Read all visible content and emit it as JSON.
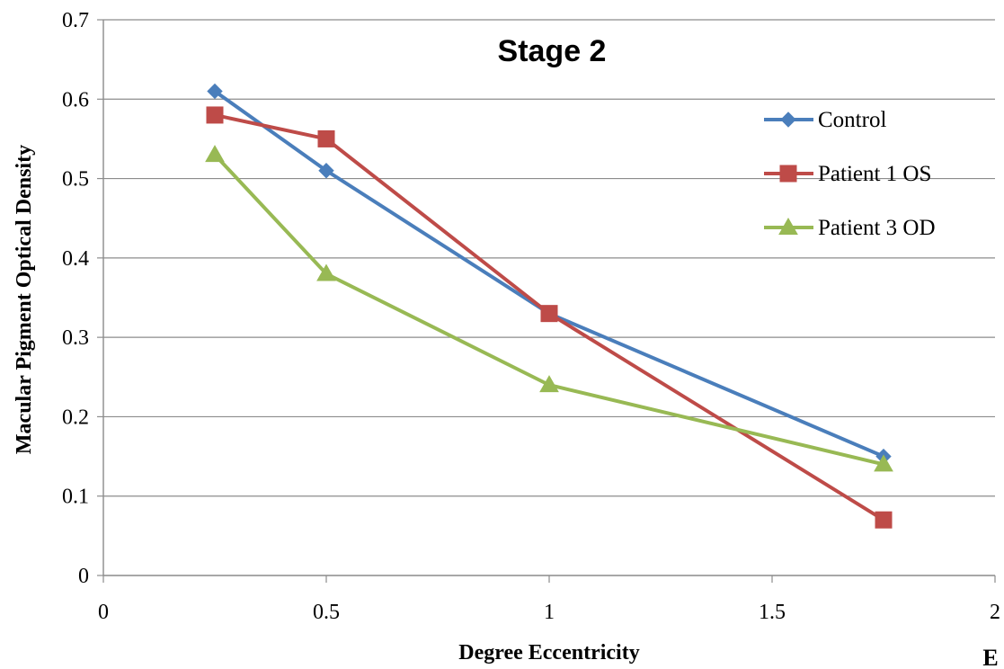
{
  "chart_data": {
    "type": "line",
    "title": "Stage 2",
    "xlabel": "Degree Eccentricity",
    "ylabel": "Macular Pigment Optical Density",
    "xlim": [
      0,
      2
    ],
    "ylim": [
      0,
      0.7
    ],
    "xticks": [
      "0",
      "0.5",
      "1",
      "1.5",
      "2"
    ],
    "yticks": [
      "0",
      "0.1",
      "0.2",
      "0.3",
      "0.4",
      "0.5",
      "0.6",
      "0.7"
    ],
    "grid": "horizontal",
    "legend_position": "right",
    "panel_label": "E",
    "series": [
      {
        "name": "Control",
        "color": "#4a7ebb",
        "marker": "diamond",
        "x": [
          0.25,
          0.5,
          1,
          1.75
        ],
        "y": [
          0.61,
          0.51,
          0.33,
          0.15
        ]
      },
      {
        "name": "Patient 1 OS",
        "color": "#be4b48",
        "marker": "square",
        "x": [
          0.25,
          0.5,
          1,
          1.75
        ],
        "y": [
          0.58,
          0.55,
          0.33,
          0.07
        ]
      },
      {
        "name": "Patient 3 OD",
        "color": "#98b954",
        "marker": "triangle",
        "x": [
          0.25,
          0.5,
          1,
          1.75
        ],
        "y": [
          0.53,
          0.38,
          0.24,
          0.14
        ]
      }
    ]
  }
}
